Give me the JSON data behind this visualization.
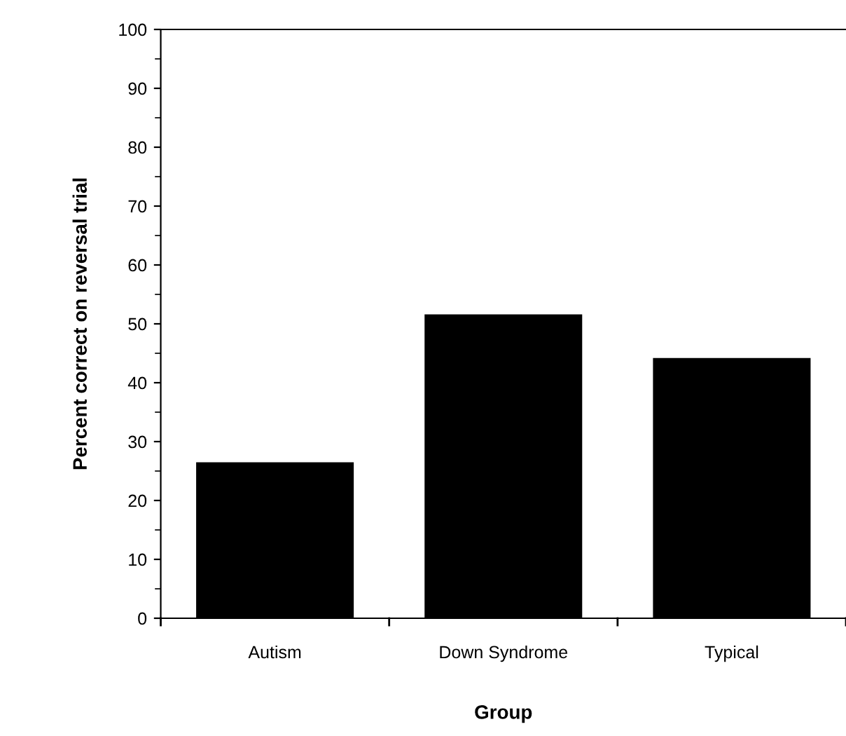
{
  "chart_data": {
    "type": "bar",
    "xlabel": "Group",
    "ylabel": "Percent correct on reversal trial",
    "categories": [
      "Autism",
      "Down Syndrome",
      "Typical"
    ],
    "values": [
      26.5,
      51.6,
      44.2
    ],
    "color": "#000000",
    "ylim": [
      0,
      100
    ],
    "yticks": [
      0,
      10,
      20,
      30,
      40,
      50,
      60,
      70,
      80,
      90,
      100
    ],
    "grid": false,
    "legend": false
  }
}
